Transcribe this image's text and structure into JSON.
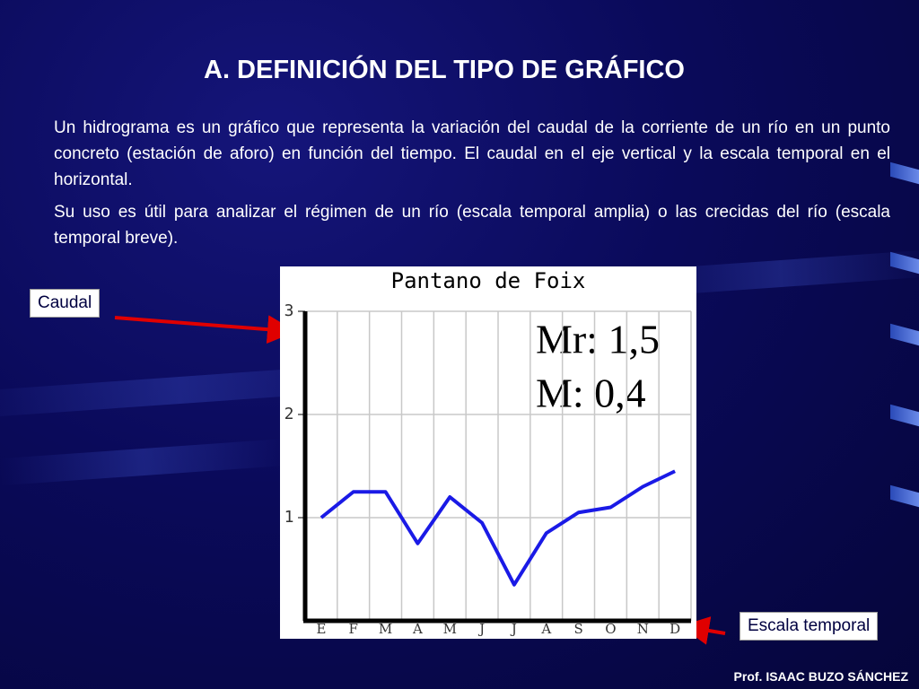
{
  "title": "A. DEFINICIÓN DEL TIPO DE GRÁFICO",
  "paragraphs": [
    "Un hidrograma es un gráfico que representa la variación del caudal de la corriente de un río en un punto concreto (estación de aforo) en función del tiempo. El caudal en el eje vertical y la escala temporal en el horizontal.",
    "Su uso es útil para analizar el régimen de un río (escala temporal amplia) o las crecidas del río (escala temporal breve)."
  ],
  "callouts": {
    "y_axis": "Caudal",
    "x_axis": "Escala temporal"
  },
  "footer": "Prof. ISAAC BUZO SÁNCHEZ",
  "chart_data": {
    "type": "line",
    "title": "Pantano de Foix",
    "annotations": [
      "Mr: 1,5",
      "M: 0,4"
    ],
    "categories": [
      "E",
      "F",
      "M",
      "A",
      "M",
      "J",
      "J",
      "A",
      "S",
      "O",
      "N",
      "D"
    ],
    "values": [
      1.0,
      1.25,
      1.25,
      0.75,
      1.2,
      0.95,
      0.35,
      0.85,
      1.05,
      1.1,
      1.3,
      1.45
    ],
    "color": "#1a1ae6",
    "ylim": [
      0,
      3
    ],
    "yticks": [
      1,
      2,
      3
    ],
    "grid": true
  }
}
